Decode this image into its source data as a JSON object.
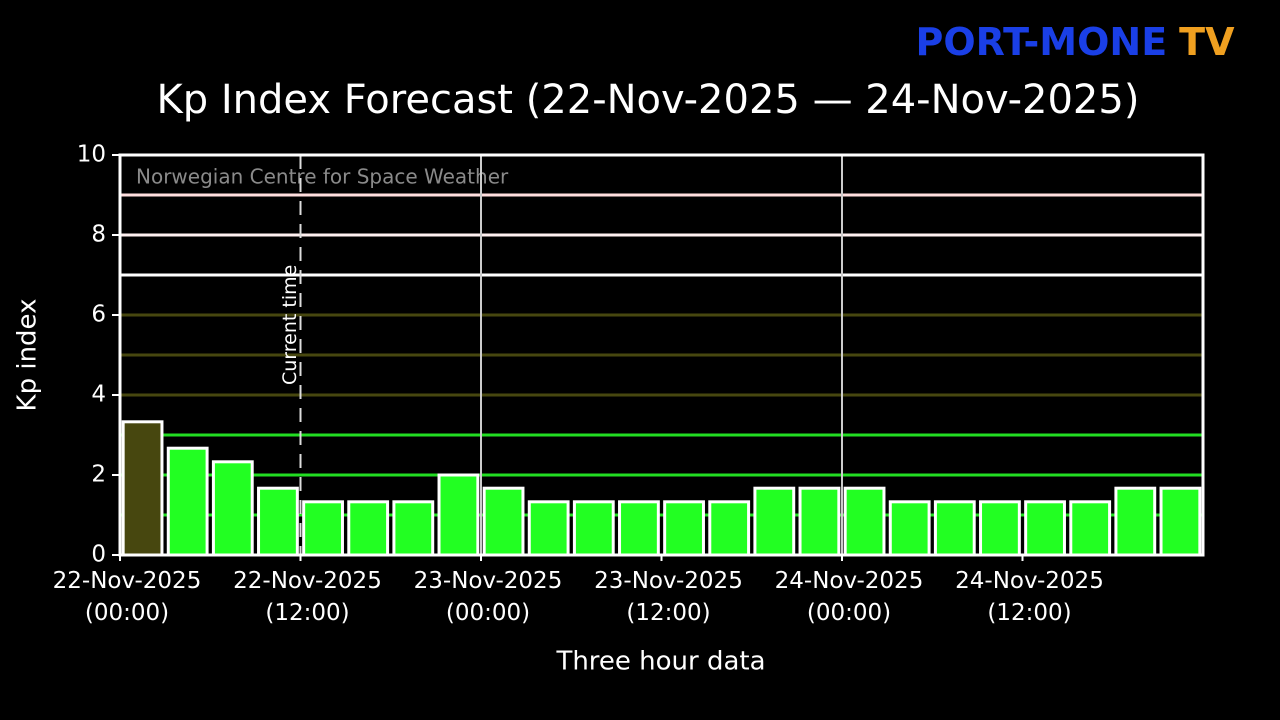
{
  "chart_data": {
    "type": "bar",
    "title": "Kp Index Forecast (22-Nov-2025 — 24-Nov-2025)",
    "logo": "PORT-MONE",
    "logo_suffix": "TV",
    "annotation": "Norwegian Centre for Space Weather",
    "x_label": "Three hour data",
    "y_label": "Kp index",
    "x": [
      1.5,
      4.5,
      7.5,
      10.5,
      13.5,
      16.5,
      19.5,
      22.5,
      25.5,
      28.5,
      31.5,
      34.5,
      37.5,
      40.5,
      43.5,
      46.5,
      49.5,
      52.5,
      55.5,
      58.5,
      61.5,
      64.5,
      67.5,
      70.5
    ],
    "values": [
      3.33,
      2.67,
      2.33,
      1.67,
      1.33,
      1.33,
      1.33,
      2.0,
      1.67,
      1.33,
      1.33,
      1.33,
      1.33,
      1.33,
      1.67,
      1.67,
      1.67,
      1.33,
      1.33,
      1.33,
      1.33,
      1.33,
      1.67,
      1.67
    ],
    "colors": [
      "#47470f",
      "#22ff22",
      "#22ff22",
      "#22ff22",
      "#22ff22",
      "#22ff22",
      "#22ff22",
      "#22ff22",
      "#22ff22",
      "#22ff22",
      "#22ff22",
      "#22ff22",
      "#22ff22",
      "#22ff22",
      "#22ff22",
      "#22ff22",
      "#22ff22",
      "#22ff22",
      "#22ff22",
      "#22ff22",
      "#22ff22",
      "#22ff22",
      "#22ff22",
      "#22ff22"
    ],
    "xlim": [
      0,
      72
    ],
    "xticks": [
      {
        "value": 0,
        "label": "22-Nov-2025 (00:00)"
      },
      {
        "value": 12,
        "label": "22-Nov-2025 (12:00)"
      },
      {
        "value": 24,
        "label": "23-Nov-2025 (00:00)"
      },
      {
        "value": 36,
        "label": "23-Nov-2025 (12:00)"
      },
      {
        "value": 48,
        "label": "24-Nov-2025 (00:00)"
      },
      {
        "value": 60,
        "label": "24-Nov-2025 (12:00)"
      }
    ],
    "ylim": [
      0,
      10
    ],
    "yticks": [
      0,
      2,
      4,
      6,
      8,
      10
    ],
    "hlines": [
      {
        "value": 1,
        "color": "#22dd22"
      },
      {
        "value": 2,
        "color": "#22dd22"
      },
      {
        "value": 3,
        "color": "#22dd22"
      },
      {
        "value": 4,
        "color": "#47470f"
      },
      {
        "value": 5,
        "color": "#47470f"
      },
      {
        "value": 6,
        "color": "#47470f"
      },
      {
        "value": 7,
        "color": "#ffffff"
      },
      {
        "value": 8,
        "color": "#fff0f0"
      },
      {
        "value": 9,
        "color": "#ffdede"
      }
    ],
    "vlines": [
      24,
      48
    ],
    "current_time": {
      "value": 12,
      "label": "Current time"
    }
  }
}
